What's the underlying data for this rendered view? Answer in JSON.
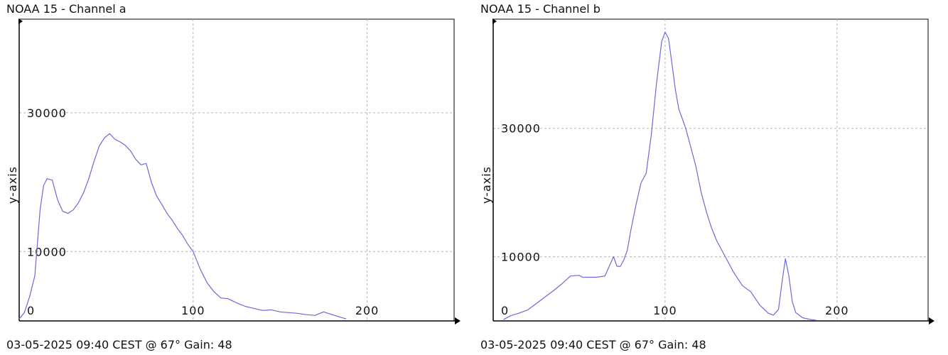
{
  "panels": [
    {
      "title": "NOAA 15 - Channel a",
      "footer": "03-05-2025 09:40 CEST @ 67° Gain: 48",
      "ylabel": "y-axis"
    },
    {
      "title": "NOAA 15 - Channel b",
      "footer": "03-05-2025 09:40 CEST @ 67° Gain: 48",
      "ylabel": "y-axis"
    }
  ],
  "colors": {
    "line": "#6a6ad8",
    "grid": "#b5b5b5",
    "axis": "#000000"
  },
  "chart_data": [
    {
      "type": "line",
      "title": "NOAA 15 - Channel a",
      "xlabel": "",
      "ylabel": "y-axis",
      "xlim": [
        0,
        250
      ],
      "ylim": [
        0,
        43500
      ],
      "x_ticks": [
        0,
        100,
        200
      ],
      "x_tick_labels": [
        "0",
        "100",
        "200"
      ],
      "y_ticks": [
        10000,
        30000
      ],
      "y_tick_labels": [
        "10000",
        "30000"
      ],
      "grid": true,
      "series": [
        {
          "x": [
            0,
            3,
            6,
            9,
            12,
            14,
            16,
            19,
            22,
            25,
            28,
            31,
            34,
            37,
            40,
            43,
            46,
            49,
            52,
            55,
            58,
            61,
            64,
            67,
            70,
            73,
            76,
            79,
            82,
            85,
            88,
            91,
            94,
            97,
            100,
            104,
            108,
            112,
            116,
            120,
            125,
            130,
            135,
            140,
            145,
            150,
            155,
            160,
            165,
            170,
            175,
            180,
            185,
            188
          ],
          "y": [
            300,
            1200,
            3500,
            6500,
            16000,
            19500,
            20500,
            20300,
            17500,
            15800,
            15500,
            16000,
            17000,
            18500,
            20500,
            23000,
            25200,
            26400,
            27000,
            26200,
            25800,
            25300,
            24500,
            23300,
            22500,
            22700,
            20000,
            18000,
            16800,
            15500,
            14500,
            13300,
            12300,
            11000,
            10000,
            7500,
            5500,
            4200,
            3300,
            3200,
            2600,
            2100,
            1800,
            1500,
            1600,
            1300,
            1200,
            1100,
            900,
            800,
            1300,
            900,
            500,
            300
          ]
        }
      ]
    },
    {
      "type": "line",
      "title": "NOAA 15 - Channel b",
      "xlabel": "",
      "ylabel": "y-axis",
      "xlim": [
        0,
        253
      ],
      "ylim": [
        0,
        47000
      ],
      "x_ticks": [
        0,
        100,
        200
      ],
      "x_tick_labels": [
        "0",
        "100",
        "200"
      ],
      "y_ticks": [
        10000,
        30000
      ],
      "y_tick_labels": [
        "10000",
        "30000"
      ],
      "grid": true,
      "series": [
        {
          "x": [
            6,
            10,
            15,
            20,
            25,
            30,
            35,
            40,
            45,
            50,
            52,
            55,
            60,
            65,
            70,
            72,
            74,
            76,
            78,
            80,
            83,
            86,
            89,
            92,
            95,
            98,
            100,
            102,
            104,
            106,
            108,
            110,
            112,
            115,
            118,
            121,
            124,
            127,
            130,
            135,
            140,
            145,
            150,
            155,
            160,
            163,
            166,
            168,
            170,
            172,
            174,
            176,
            180,
            185,
            188
          ],
          "y": [
            200,
            800,
            1200,
            1700,
            2700,
            3700,
            4700,
            5800,
            7000,
            7100,
            6800,
            6800,
            6800,
            7000,
            10000,
            8500,
            8500,
            9500,
            11000,
            14000,
            18000,
            21500,
            23000,
            29000,
            37000,
            43500,
            45000,
            44000,
            40000,
            36000,
            33000,
            31500,
            30000,
            27000,
            24000,
            20000,
            17000,
            14500,
            12500,
            10000,
            7500,
            5500,
            4500,
            2500,
            1200,
            900,
            1800,
            6000,
            9700,
            7000,
            3000,
            1300,
            500,
            200,
            100
          ]
        }
      ]
    }
  ]
}
